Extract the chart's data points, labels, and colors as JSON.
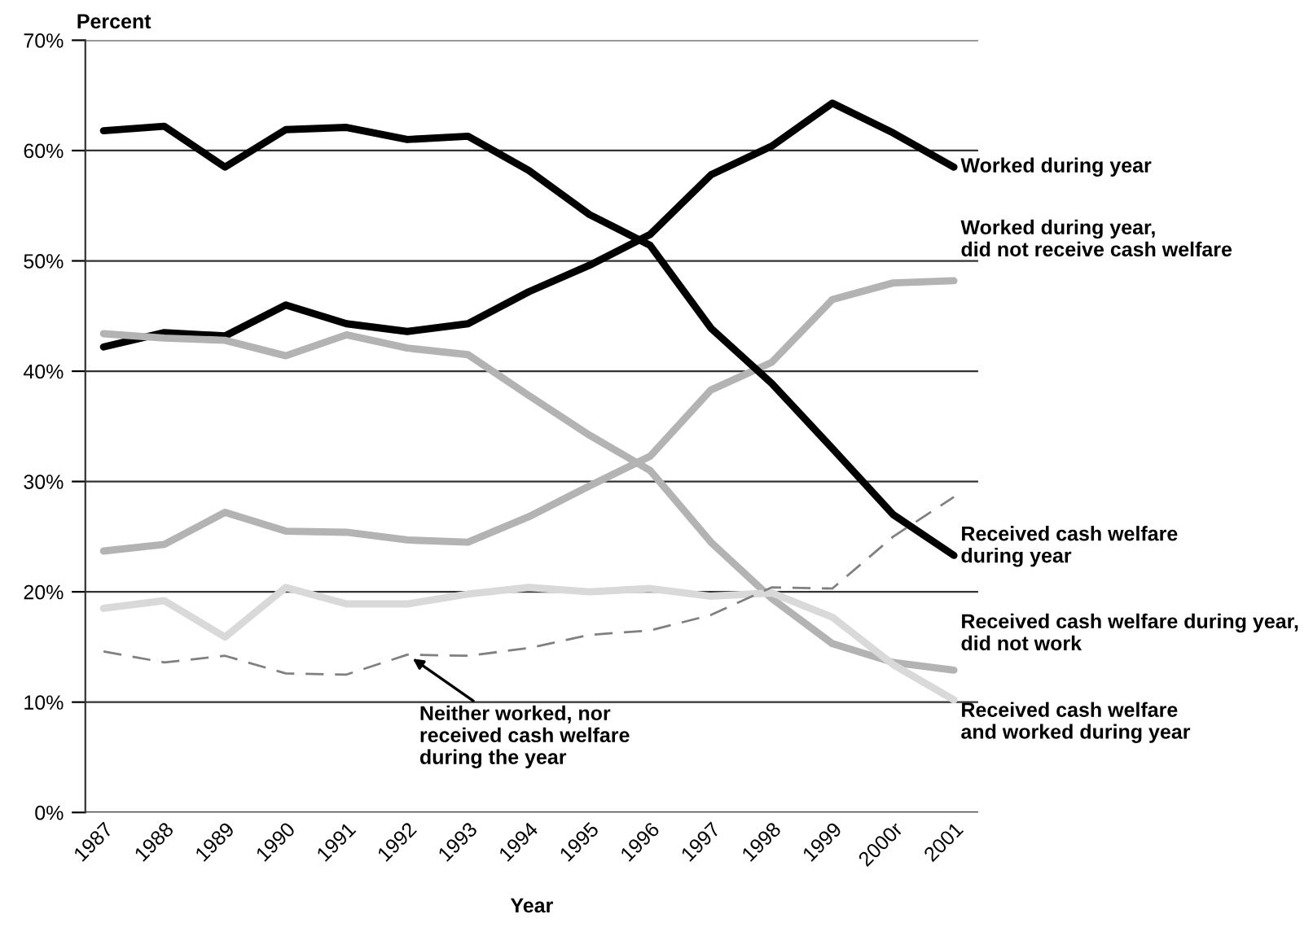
{
  "chart_data": {
    "type": "line",
    "ylabel": "Percent",
    "xlabel": "Year",
    "categories": [
      "1987",
      "1988",
      "1989",
      "1990",
      "1991",
      "1992",
      "1993",
      "1994",
      "1995",
      "1996",
      "1997",
      "1998",
      "1999",
      "2000r",
      "2001"
    ],
    "series": [
      {
        "name": "Worked during year",
        "color": "#000000",
        "values": [
          42.2,
          43.5,
          43.2,
          46.0,
          44.3,
          43.6,
          44.3,
          47.2,
          49.6,
          52.4,
          57.8,
          60.4,
          64.3,
          61.6,
          58.5
        ]
      },
      {
        "name": "Worked during year,\ndid not receive cash welfare",
        "color": "#b3b3b3",
        "values": [
          23.7,
          24.3,
          27.2,
          25.5,
          25.4,
          24.7,
          24.5,
          26.8,
          29.6,
          32.3,
          38.3,
          40.8,
          46.5,
          48.0,
          48.2
        ]
      },
      {
        "name": "Received cash welfare\nduring year",
        "color": "#000000",
        "values": [
          61.8,
          62.2,
          58.5,
          61.9,
          62.1,
          61.0,
          61.3,
          58.2,
          54.2,
          51.4,
          43.9,
          38.9,
          33.0,
          27.0,
          23.3
        ]
      },
      {
        "name": "Received cash welfare during year,\ndid not work",
        "color": "#b3b3b3",
        "values": [
          43.4,
          43.0,
          42.8,
          41.4,
          43.3,
          42.1,
          41.5,
          37.8,
          34.2,
          31.0,
          24.5,
          19.4,
          15.3,
          13.6,
          12.9
        ]
      },
      {
        "name": "Received cash welfare\nand worked during year",
        "color": "#d9d9d9",
        "values": [
          18.5,
          19.2,
          15.9,
          20.4,
          18.9,
          18.9,
          19.8,
          20.4,
          20.0,
          20.3,
          19.6,
          19.9,
          17.7,
          13.4,
          10.2
        ]
      },
      {
        "color": "#808080",
        "line_style": "dashed",
        "values": [
          14.6,
          13.6,
          14.2,
          12.6,
          12.5,
          14.3,
          14.2,
          14.9,
          16.1,
          16.5,
          17.9,
          20.4,
          20.3,
          25.0,
          28.6
        ]
      }
    ],
    "annotations": [
      {
        "text": "Neither worked, nor\nreceived cash welfare\nduring the year",
        "x": "1992",
        "y": 14.3
      }
    ],
    "ylim": [
      0,
      70
    ],
    "yticks": [
      {
        "value": 0,
        "label": "0%"
      },
      {
        "value": 10,
        "label": "10%"
      },
      {
        "value": 20,
        "label": "20%"
      },
      {
        "value": 30,
        "label": "30%"
      },
      {
        "value": 40,
        "label": "40%"
      },
      {
        "value": 50,
        "label": "50%"
      },
      {
        "value": 60,
        "label": "60%"
      },
      {
        "value": 70,
        "label": "70%"
      }
    ],
    "grid": "y",
    "legend": false
  }
}
